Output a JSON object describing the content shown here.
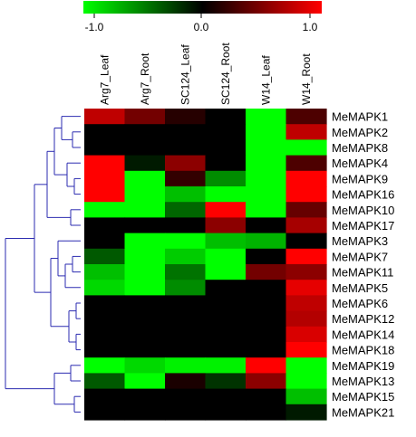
{
  "chart_data": {
    "type": "heatmap",
    "title": "",
    "color_scale": {
      "min": -1.0,
      "mid": 0.0,
      "max": 1.0,
      "tick_labels": [
        "-1.0",
        "0.0",
        "1.0"
      ],
      "colors": {
        "low": "#00ff00",
        "mid": "#000000",
        "high": "#ff0000"
      }
    },
    "columns": [
      "Arg7_Leaf",
      "Arg7_Root",
      "SC124_Leaf",
      "SC124_Root",
      "W14_Leaf",
      "W14_Root"
    ],
    "rows": [
      "MeMAPK1",
      "MeMAPK2",
      "MeMAPK8",
      "MeMAPK4",
      "MeMAPK9",
      "MeMAPK16",
      "MeMAPK10",
      "MeMAPK17",
      "MeMAPK3",
      "MeMAPK7",
      "MeMAPK11",
      "MeMAPK5",
      "MeMAPK6",
      "MeMAPK12",
      "MeMAPK14",
      "MeMAPK18",
      "MeMAPK19",
      "MeMAPK13",
      "MeMAPK15",
      "MeMAPK21"
    ],
    "values": [
      [
        0.75,
        0.45,
        0.15,
        0.0,
        -1.0,
        0.3
      ],
      [
        0.0,
        0.0,
        0.0,
        0.0,
        -1.0,
        0.75
      ],
      [
        0.0,
        0.0,
        0.0,
        0.0,
        -1.0,
        -1.0
      ],
      [
        1.0,
        -0.1,
        0.55,
        0.0,
        -1.0,
        0.3
      ],
      [
        1.0,
        -1.0,
        0.2,
        -0.55,
        -1.0,
        1.0
      ],
      [
        1.0,
        -1.0,
        -0.75,
        -1.0,
        -1.0,
        1.0
      ],
      [
        -1.0,
        -1.0,
        -0.4,
        1.0,
        -1.0,
        0.4
      ],
      [
        0.0,
        0.0,
        0.0,
        0.55,
        0.0,
        0.65
      ],
      [
        0.0,
        -1.0,
        -1.0,
        -0.75,
        -0.7,
        0.0
      ],
      [
        -0.35,
        -1.0,
        -0.8,
        -1.0,
        0.0,
        1.0
      ],
      [
        -0.75,
        -1.0,
        -0.45,
        -1.0,
        0.45,
        0.55
      ],
      [
        -0.85,
        -1.0,
        -0.55,
        0.0,
        0.0,
        0.9
      ],
      [
        0.0,
        0.0,
        0.0,
        0.0,
        0.0,
        0.75
      ],
      [
        0.0,
        0.0,
        0.0,
        0.0,
        0.0,
        0.7
      ],
      [
        0.0,
        0.0,
        0.0,
        0.0,
        0.0,
        0.85
      ],
      [
        0.0,
        0.0,
        0.0,
        0.0,
        0.0,
        1.0
      ],
      [
        -1.0,
        -0.85,
        -0.95,
        -0.95,
        1.0,
        -1.0
      ],
      [
        -0.35,
        -1.0,
        0.1,
        -0.2,
        0.55,
        -1.0
      ],
      [
        0.0,
        0.0,
        0.0,
        0.0,
        0.0,
        -0.75
      ],
      [
        0.0,
        0.0,
        0.0,
        0.0,
        0.0,
        -0.1
      ]
    ]
  }
}
